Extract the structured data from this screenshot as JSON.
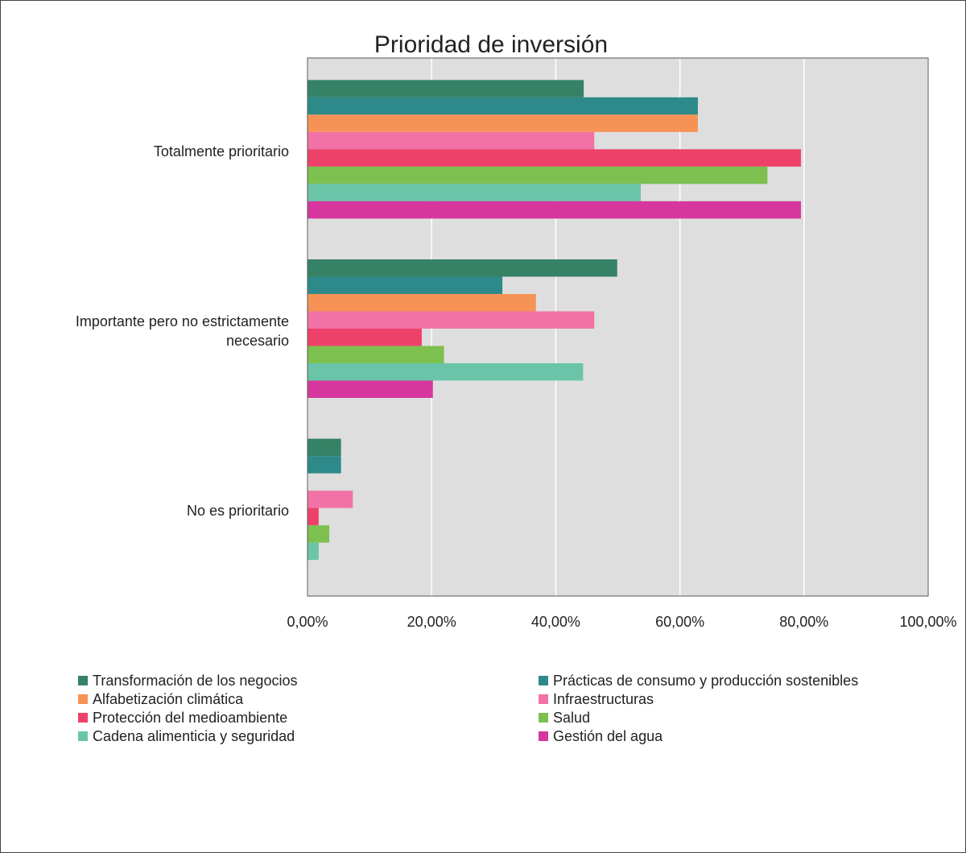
{
  "chart_data": {
    "type": "barh",
    "title": "Prioridad de inversión",
    "categories": [
      "Totalmente prioritario",
      "Importante pero no estrictamente necesario",
      "No es prioritario"
    ],
    "series": [
      {
        "name": "Transformación de los negocios",
        "color": "#358267",
        "values": [
          44.5,
          49.9,
          5.4
        ]
      },
      {
        "name": "Prácticas de consumo y producción sostenibles",
        "color": "#2e8a8a",
        "values": [
          62.9,
          31.4,
          5.4
        ]
      },
      {
        "name": "Alfabetización climática",
        "color": "#f79256",
        "values": [
          62.9,
          36.8,
          0
        ]
      },
      {
        "name": "Infraestructuras",
        "color": "#f272a6",
        "values": [
          46.2,
          46.2,
          7.3
        ]
      },
      {
        "name": "Protección del medioambiente",
        "color": "#ee4169",
        "values": [
          79.5,
          18.4,
          1.8
        ]
      },
      {
        "name": "Salud",
        "color": "#7dc050",
        "values": [
          74.1,
          22.0,
          3.5
        ]
      },
      {
        "name": "Cadena alimenticia y seguridad",
        "color": "#6ac5a8",
        "values": [
          53.7,
          44.4,
          1.8
        ]
      },
      {
        "name": "Gestión del agua",
        "color": "#d6369e",
        "values": [
          79.5,
          20.2,
          0
        ]
      }
    ],
    "xlim": [
      0,
      100
    ],
    "xticks": [
      {
        "value": 0,
        "label": "0,00%"
      },
      {
        "value": 20,
        "label": "20,00%"
      },
      {
        "value": 40,
        "label": "40,00%"
      },
      {
        "value": 60,
        "label": "60,00%"
      },
      {
        "value": 80,
        "label": "80,00%"
      },
      {
        "value": 100,
        "label": "100,00%"
      }
    ],
    "grid": true,
    "legend": "bottom"
  }
}
